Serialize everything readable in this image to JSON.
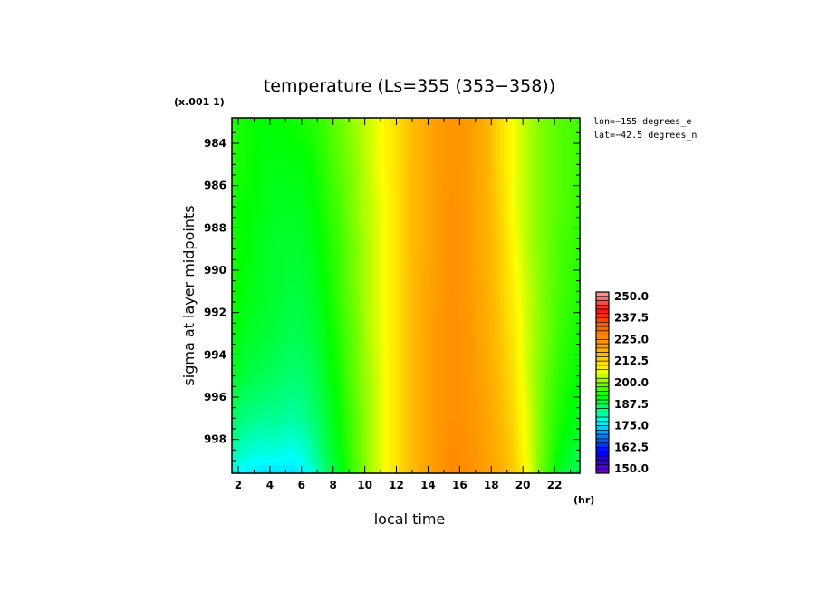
{
  "chart_data": {
    "type": "heatmap",
    "title": "temperature (Ls=355 (353−358))",
    "xlabel": "local time",
    "ylabel": "sigma at layer midpoints",
    "x_unit": "(hr)",
    "y_scale_note": "(x.001 1)",
    "annotations": [
      "lon=−155 degrees_e",
      "lat=−42.5 degrees_n"
    ],
    "x_ticks": [
      "2",
      "4",
      "6",
      "8",
      "10",
      "12",
      "14",
      "16",
      "18",
      "20",
      "22"
    ],
    "y_ticks": [
      "984",
      "986",
      "988",
      "990",
      "992",
      "994",
      "996",
      "998"
    ],
    "xlim": [
      1.6,
      23.6
    ],
    "ylim": [
      982.8,
      999.6
    ],
    "x": [
      1.6,
      2.5,
      3.5,
      4.5,
      5.5,
      6.5,
      7.5,
      8.5,
      9.5,
      10.5,
      11.5,
      12.5,
      13.5,
      14.5,
      15.5,
      16.5,
      17.5,
      18.5,
      19.5,
      20.5,
      21.5,
      22.5,
      23.6
    ],
    "y": [
      982.8,
      985,
      987,
      989,
      991,
      993,
      995,
      997,
      998.5,
      999.6
    ],
    "z": [
      [
        194,
        193,
        192,
        192,
        193,
        194,
        196,
        199,
        202,
        205,
        209,
        213,
        218,
        222,
        224,
        223,
        219,
        212,
        206,
        202,
        199,
        197,
        196
      ],
      [
        194,
        193,
        191,
        191,
        191,
        192,
        195,
        198,
        201,
        205,
        209,
        213,
        218,
        222,
        224,
        223,
        219,
        212,
        206,
        202,
        199,
        197,
        196
      ],
      [
        193,
        192,
        191,
        190,
        190,
        191,
        194,
        197,
        201,
        204,
        208,
        213,
        218,
        222,
        225,
        223,
        219,
        213,
        206,
        202,
        199,
        197,
        195
      ],
      [
        193,
        192,
        190,
        189,
        189,
        190,
        193,
        196,
        200,
        204,
        208,
        213,
        218,
        222,
        225,
        223,
        219,
        214,
        207,
        202,
        199,
        196,
        195
      ],
      [
        193,
        191,
        190,
        189,
        188,
        189,
        192,
        196,
        200,
        204,
        208,
        213,
        219,
        222,
        225,
        223,
        220,
        214,
        208,
        203,
        199,
        196,
        194
      ],
      [
        192,
        190,
        189,
        188,
        187,
        188,
        191,
        195,
        199,
        204,
        208,
        213,
        219,
        223,
        225,
        224,
        220,
        215,
        209,
        203,
        199,
        195,
        193
      ],
      [
        190,
        188,
        187,
        186,
        185,
        186,
        190,
        194,
        199,
        203,
        208,
        213,
        219,
        223,
        225,
        224,
        221,
        216,
        210,
        203,
        198,
        194,
        192
      ],
      [
        186,
        184,
        183,
        183,
        182,
        184,
        188,
        193,
        198,
        203,
        208,
        213,
        219,
        223,
        225,
        224,
        222,
        217,
        211,
        204,
        197,
        193,
        190
      ],
      [
        182,
        180,
        179,
        179,
        178,
        181,
        187,
        192,
        198,
        203,
        208,
        213,
        219,
        223,
        226,
        225,
        222,
        218,
        212,
        204,
        197,
        191,
        188
      ],
      [
        178,
        176,
        175,
        175,
        175,
        178,
        185,
        191,
        197,
        203,
        208,
        213,
        219,
        223,
        226,
        225,
        223,
        219,
        213,
        205,
        196,
        189,
        186
      ]
    ],
    "colorbar": {
      "min": 147.5,
      "max": 252.5,
      "labels": [
        "250.0",
        "237.5",
        "225.0",
        "212.5",
        "200.0",
        "187.5",
        "175.0",
        "162.5",
        "150.0"
      ],
      "stops": [
        {
          "v": 147.5,
          "c": "#7a00b8"
        },
        {
          "v": 152.5,
          "c": "#3a00e0"
        },
        {
          "v": 160,
          "c": "#0000ff"
        },
        {
          "v": 170,
          "c": "#0090ff"
        },
        {
          "v": 177,
          "c": "#00ffff"
        },
        {
          "v": 184,
          "c": "#00ff80"
        },
        {
          "v": 192,
          "c": "#00ff00"
        },
        {
          "v": 200,
          "c": "#80ff00"
        },
        {
          "v": 207,
          "c": "#ffff00"
        },
        {
          "v": 215,
          "c": "#ffc000"
        },
        {
          "v": 225,
          "c": "#ff9000"
        },
        {
          "v": 235,
          "c": "#ff5000"
        },
        {
          "v": 242,
          "c": "#ff1010"
        },
        {
          "v": 252.5,
          "c": "#ffa0a0"
        }
      ]
    }
  }
}
